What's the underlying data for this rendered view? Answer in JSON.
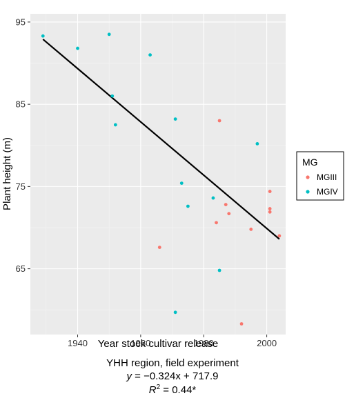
{
  "chart_data": {
    "type": "scatter",
    "xlabel": "Year stock cultivar release",
    "ylabel": "Plant height (m)",
    "xlim": [
      1925,
      2006
    ],
    "ylim": [
      57,
      96
    ],
    "x_ticks": [
      1940,
      1960,
      1980,
      2000
    ],
    "y_ticks": [
      65,
      75,
      85,
      95
    ],
    "grid": true,
    "legend": {
      "title": "MG",
      "placement": "right"
    },
    "series": [
      {
        "name": "MGIII",
        "color": "#F8766D",
        "points": [
          {
            "x": 1966,
            "y": 67.6
          },
          {
            "x": 1984,
            "y": 70.6
          },
          {
            "x": 1985,
            "y": 83.0
          },
          {
            "x": 1987,
            "y": 72.8
          },
          {
            "x": 1988,
            "y": 71.7
          },
          {
            "x": 1992,
            "y": 58.3
          },
          {
            "x": 1995,
            "y": 69.8
          },
          {
            "x": 2001,
            "y": 74.4
          },
          {
            "x": 2001,
            "y": 72.3
          },
          {
            "x": 2001,
            "y": 71.9
          },
          {
            "x": 2004,
            "y": 69.0
          }
        ]
      },
      {
        "name": "MGIV",
        "color": "#00BFC4",
        "points": [
          {
            "x": 1929,
            "y": 93.3
          },
          {
            "x": 1940,
            "y": 91.8
          },
          {
            "x": 1950,
            "y": 93.5
          },
          {
            "x": 1951,
            "y": 86.0
          },
          {
            "x": 1952,
            "y": 82.5
          },
          {
            "x": 1963,
            "y": 91.0
          },
          {
            "x": 1971,
            "y": 83.2
          },
          {
            "x": 1971,
            "y": 59.7
          },
          {
            "x": 1973,
            "y": 75.4
          },
          {
            "x": 1975,
            "y": 72.6
          },
          {
            "x": 1983,
            "y": 73.6
          },
          {
            "x": 1985,
            "y": 64.8
          },
          {
            "x": 1997,
            "y": 80.2
          }
        ]
      }
    ],
    "trendline": {
      "slope": -0.324,
      "intercept": 717.9,
      "x_range": [
        1929,
        2004
      ],
      "color": "#000000"
    },
    "annotations": {
      "region": "YHH region, field experiment",
      "eq_y": "y",
      "eq_x": "x",
      "equation_rest": " = −0.324x + 717.9",
      "r2_symbol": "R",
      "r2_sup": "2",
      "r2_value": " = 0.44*"
    }
  }
}
